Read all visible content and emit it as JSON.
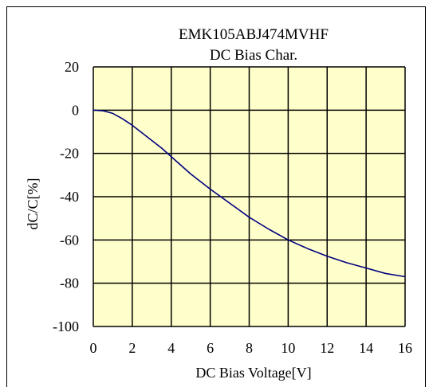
{
  "chart_data": {
    "type": "line",
    "title": "EMK105ABJ474MVHF",
    "subtitle": "DC Bias Char.",
    "xlabel": "DC Bias Voltage[V]",
    "ylabel": "dC/C[%]",
    "xlim": [
      0,
      16
    ],
    "ylim": [
      -100,
      20
    ],
    "xticks": [
      "0",
      "2",
      "4",
      "6",
      "8",
      "10",
      "12",
      "14",
      "16"
    ],
    "yticks": [
      "20",
      "0",
      "-20",
      "-40",
      "-60",
      "-80",
      "-100"
    ],
    "grid": true,
    "plot_background": "#ffffcc",
    "line_color": "#000080",
    "series": [
      {
        "x": [
          0,
          0.5,
          1,
          1.5,
          2,
          2.5,
          3,
          3.5,
          4,
          4.5,
          5,
          5.5,
          6,
          7,
          8,
          9,
          10,
          11,
          12,
          13,
          14,
          15,
          16
        ],
        "values": [
          0,
          -0.3,
          -1.5,
          -4,
          -7,
          -10.5,
          -14,
          -17.5,
          -21.5,
          -25.5,
          -29.5,
          -33,
          -36.5,
          -43,
          -49.5,
          -55,
          -60,
          -64,
          -67.5,
          -70.5,
          -73,
          -75.5,
          -77
        ]
      }
    ]
  }
}
